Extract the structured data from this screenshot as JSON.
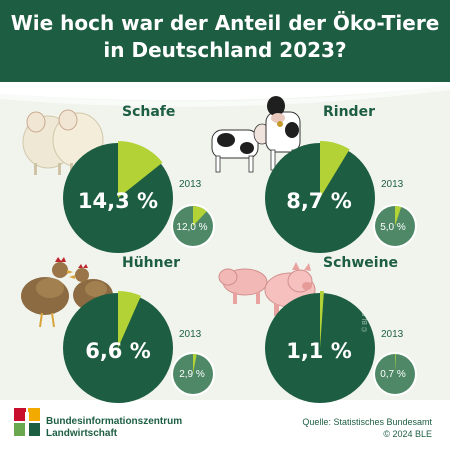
{
  "title_line1": "Wie hoch war der Anteil der Öko-Tiere",
  "title_line2": "in Deutschland 2023?",
  "colors": {
    "dark_green": "#1d5e43",
    "medium_green": "#4e8867",
    "lime_green": "#b2d235",
    "background": "#f1f4ed"
  },
  "chart_data": {
    "type": "pie",
    "panels": [
      {
        "animal": "Schafe",
        "icon": "sheep-icon",
        "value_2023": 14.3,
        "label_2023": "14,3 %",
        "year_compare": "2013",
        "value_2013": 12.0,
        "label_2013": "12,0 %"
      },
      {
        "animal": "Rinder",
        "icon": "cow-icon",
        "value_2023": 8.7,
        "label_2023": "8,7 %",
        "year_compare": "2013",
        "value_2013": 5.0,
        "label_2013": "5,0 %"
      },
      {
        "animal": "Hühner",
        "icon": "chicken-icon",
        "value_2023": 6.6,
        "label_2023": "6,6 %",
        "year_compare": "2013",
        "value_2013": 2.9,
        "label_2013": "2,9 %"
      },
      {
        "animal": "Schweine",
        "icon": "pig-icon",
        "value_2023": 1.1,
        "label_2023": "1,1 %",
        "year_compare": "2013",
        "value_2013": 0.7,
        "label_2013": "0,7 %"
      }
    ]
  },
  "footer": {
    "org_line1": "Bundesinformationszentrum",
    "org_line2": "Landwirtschaft",
    "source_line1": "Quelle: Statistisches Bundesamt",
    "source_line2": "© 2024 BLE",
    "watermark": "© BLE"
  }
}
